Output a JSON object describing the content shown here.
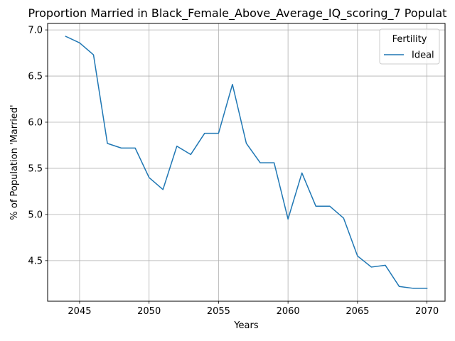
{
  "chart_data": {
    "type": "line",
    "title": "Proportion Married in Black_Female_Above_Average_IQ_scoring_7 Populat",
    "xlabel": "Years",
    "ylabel": "% of Population 'Married'",
    "xlim": [
      2042.7,
      2071.3
    ],
    "ylim": [
      4.06,
      7.07
    ],
    "xticks": [
      2045,
      2050,
      2055,
      2060,
      2065,
      2070
    ],
    "yticks": [
      4.5,
      5.0,
      5.5,
      6.0,
      6.5,
      7.0
    ],
    "xtick_labels": [
      "2045",
      "2050",
      "2055",
      "2060",
      "2065",
      "2070"
    ],
    "ytick_labels": [
      "4.5",
      "5.0",
      "5.5",
      "6.0",
      "6.5",
      "7.0"
    ],
    "grid": true,
    "legend": {
      "title": "Fertility",
      "placement": "top-right"
    },
    "x": [
      2044,
      2045,
      2046,
      2047,
      2048,
      2049,
      2050,
      2051,
      2052,
      2053,
      2054,
      2055,
      2056,
      2057,
      2058,
      2059,
      2060,
      2061,
      2062,
      2063,
      2064,
      2065,
      2066,
      2067,
      2068,
      2069,
      2070
    ],
    "series": [
      {
        "name": "Ideal",
        "color": "#1f77b4",
        "values": [
          6.93,
          6.86,
          6.73,
          5.77,
          5.72,
          5.72,
          5.4,
          5.27,
          5.74,
          5.65,
          5.88,
          5.88,
          6.41,
          5.77,
          5.56,
          5.56,
          4.95,
          5.45,
          5.09,
          5.09,
          4.96,
          4.55,
          4.43,
          4.45,
          4.22,
          4.2,
          4.2
        ]
      }
    ]
  }
}
